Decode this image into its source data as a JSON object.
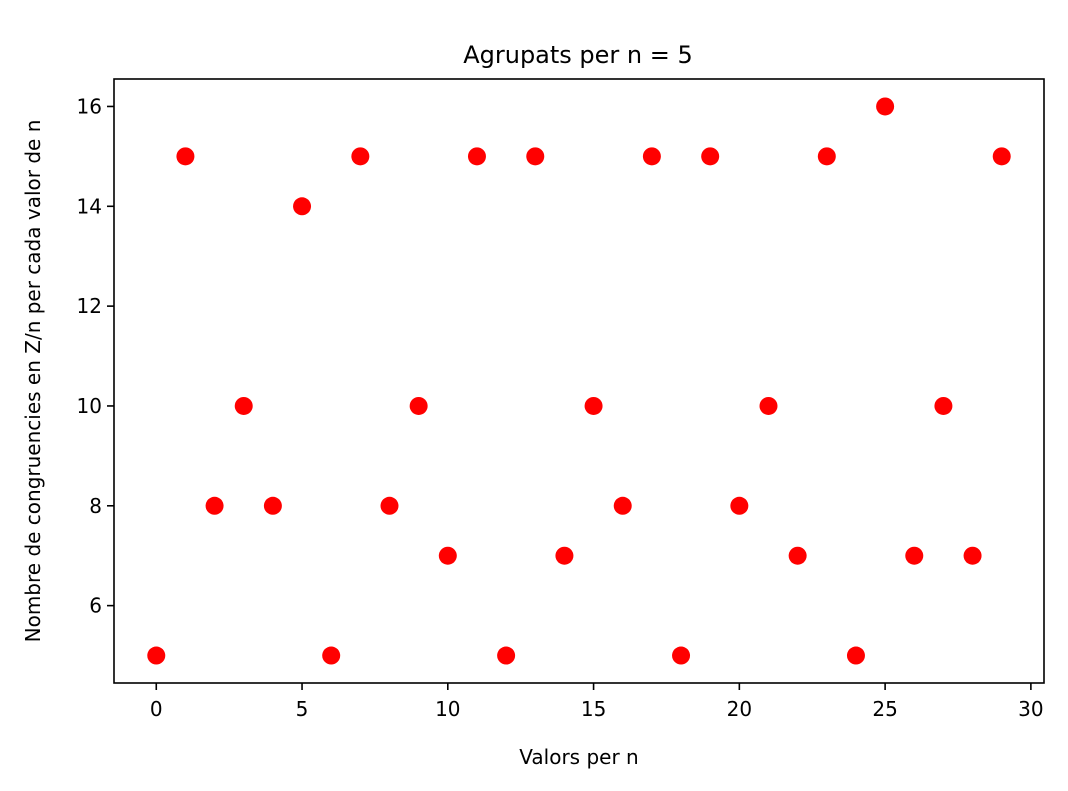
{
  "chart_data": {
    "type": "scatter",
    "title": "Agrupats per n = 5",
    "xlabel": "Valors per n",
    "ylabel": "Nombre de congruencies en Z/n per cada valor de n",
    "xlim": [
      -1.45,
      30.45
    ],
    "ylim": [
      4.45,
      16.55
    ],
    "xticks": [
      0,
      5,
      10,
      15,
      20,
      25,
      30
    ],
    "yticks": [
      6,
      8,
      10,
      12,
      14,
      16
    ],
    "marker_color": "#ff0000",
    "grid": false,
    "x": [
      0,
      1,
      2,
      3,
      4,
      5,
      6,
      7,
      8,
      9,
      10,
      11,
      12,
      13,
      14,
      15,
      16,
      17,
      18,
      19,
      20,
      21,
      22,
      23,
      24,
      25,
      26,
      27,
      28,
      29
    ],
    "y": [
      5,
      15,
      8,
      10,
      8,
      14,
      5,
      15,
      8,
      10,
      7,
      15,
      5,
      15,
      7,
      10,
      8,
      15,
      5,
      15,
      8,
      10,
      7,
      15,
      5,
      16,
      7,
      10,
      7,
      15
    ]
  }
}
